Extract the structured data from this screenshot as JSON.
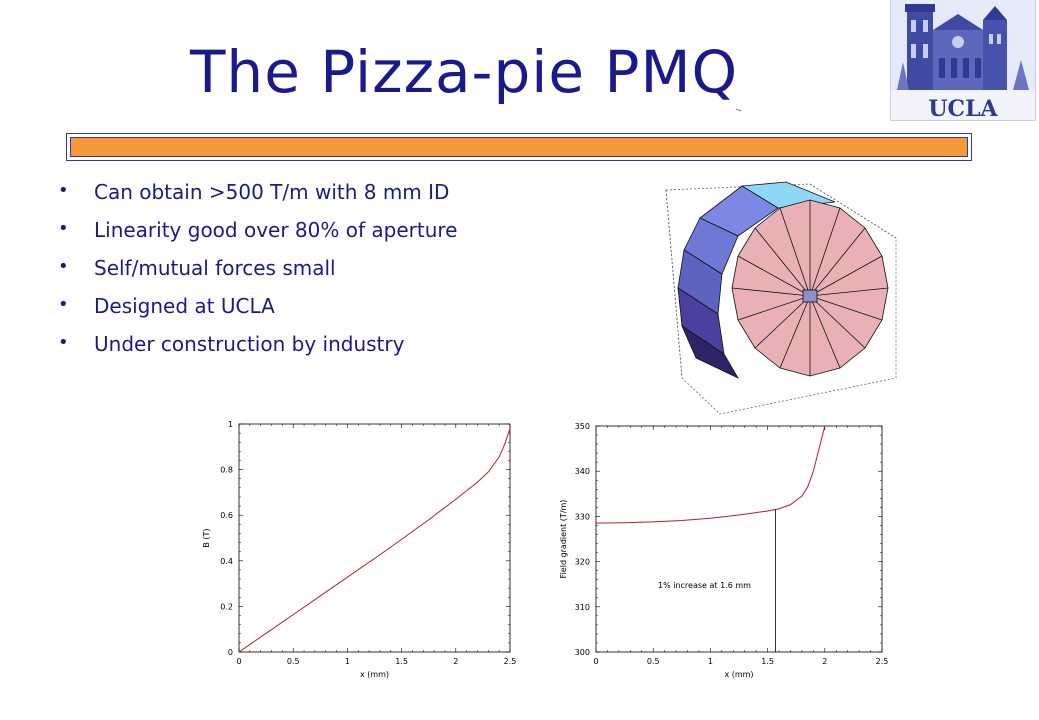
{
  "slide": {
    "title": "The Pizza-pie PMQ",
    "logo_text": "UCLA",
    "bullets": [
      {
        "text": "Can obtain >500 T/m with 8 mm ID"
      },
      {
        "text": "Linearity good over 80% of aperture"
      },
      {
        "text": "Self/mutual forces small"
      },
      {
        "text": "Designed at UCLA"
      },
      {
        "text": "Under construction by industry"
      }
    ],
    "colors": {
      "title": "#1a1a8c",
      "rule": "#f5993a",
      "rule_border": "#2e3aa8",
      "curve": "#b22222"
    }
  },
  "chart_data": [
    {
      "type": "line",
      "xlabel": "x (mm)",
      "ylabel": "B (T)",
      "xlim": [
        0,
        2.5
      ],
      "ylim": [
        0,
        1
      ],
      "xticks": [
        "0",
        "0.5",
        "1",
        "1.5",
        "2",
        "2.5"
      ],
      "yticks": [
        "0",
        "0.2",
        "0.4",
        "0.6",
        "0.8",
        "1"
      ],
      "series": [
        {
          "x": [
            0,
            0.25,
            0.5,
            0.75,
            1.0,
            1.25,
            1.5,
            1.75,
            2.0,
            2.2,
            2.3,
            2.4,
            2.45,
            2.5
          ],
          "y": [
            0,
            0.082,
            0.164,
            0.246,
            0.328,
            0.41,
            0.494,
            0.58,
            0.67,
            0.745,
            0.79,
            0.855,
            0.91,
            0.98
          ]
        }
      ]
    },
    {
      "type": "line",
      "xlabel": "x (mm)",
      "ylabel": "Field gradient (T/m)",
      "xlim": [
        0,
        2.5
      ],
      "ylim": [
        300,
        350
      ],
      "xticks": [
        "0",
        "0.5",
        "1",
        "1.5",
        "2",
        "2.5"
      ],
      "yticks": [
        "300",
        "310",
        "320",
        "330",
        "340",
        "350"
      ],
      "annotation": "1% increase at 1.6 mm",
      "marker_x": 1.57,
      "series": [
        {
          "x": [
            0,
            0.25,
            0.5,
            0.75,
            1.0,
            1.25,
            1.5,
            1.6,
            1.7,
            1.8,
            1.85,
            1.9,
            1.95,
            2.0
          ],
          "y": [
            328.5,
            328.6,
            328.8,
            329.1,
            329.6,
            330.3,
            331.2,
            331.7,
            332.6,
            334.5,
            336.5,
            340,
            345,
            350
          ]
        }
      ]
    }
  ]
}
